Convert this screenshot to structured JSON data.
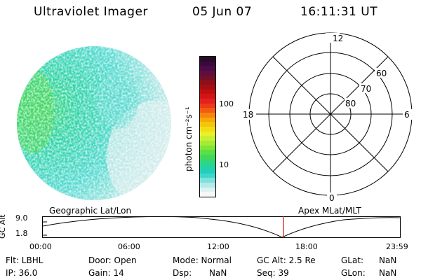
{
  "header": {
    "title": "Ultraviolet Imager",
    "date": "05 Jun 07",
    "time": "16:11:31 UT"
  },
  "colorbar": {
    "unit_label": "photon cm⁻²s⁻¹",
    "ticks": [
      "100",
      "10"
    ],
    "colors": [
      "#2a0a2a",
      "#3a0a3a",
      "#4b0a4b",
      "#5e0f3a",
      "#720f2a",
      "#8c0f1a",
      "#a50f14",
      "#bf1010",
      "#d41414",
      "#e42020",
      "#ee3a16",
      "#f25c10",
      "#f5850c",
      "#f7a80a",
      "#f5c40c",
      "#f2dd12",
      "#e9ef28",
      "#c8f030",
      "#a3eb35",
      "#7ee53a",
      "#5cde45",
      "#3fd85a",
      "#2fd67a",
      "#25d39c",
      "#22cfbd",
      "#3fd6cc",
      "#7fe0dc",
      "#b4eae8",
      "#dcf3f2",
      "#f4f9f9"
    ]
  },
  "polar_plot": {
    "mlt_labels": {
      "top": "12",
      "left": "18",
      "right": "6",
      "bottom": "0"
    },
    "lat_labels": [
      "60",
      "70",
      "80"
    ]
  },
  "timeline": {
    "left_title": "Geographic Lat/Lon",
    "right_title": "Apex MLat/MLT",
    "y_axis_label": "GC Alt",
    "y_ticks": [
      "9.0",
      "1.8"
    ],
    "x_ticks": [
      "00:00",
      "06:00",
      "12:00",
      "18:00",
      "23:59"
    ],
    "current_time_marker": "16:11"
  },
  "info": {
    "filter": "Flt: LBHL",
    "door": "Door: Open",
    "mode": "Mode: Normal",
    "gc_alt": "GC Alt: 2.5 Re",
    "glat_label": "GLat:",
    "glat_value": "NaN",
    "ip": "IP: 36.0",
    "gain": "Gain: 14",
    "dsp_label": "Dsp:",
    "dsp_value": "NaN",
    "seq": "Seq: 39",
    "glon_label": "GLon:",
    "glon_value": "NaN"
  }
}
